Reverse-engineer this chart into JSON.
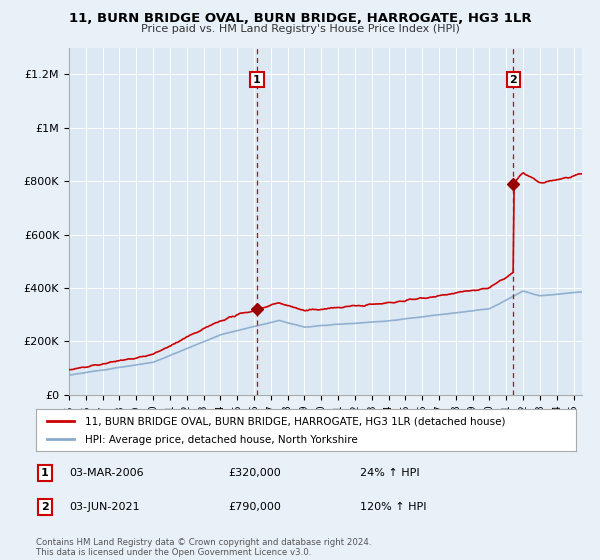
{
  "title": "11, BURN BRIDGE OVAL, BURN BRIDGE, HARROGATE, HG3 1LR",
  "subtitle": "Price paid vs. HM Land Registry's House Price Index (HPI)",
  "background_color": "#e8f0f8",
  "plot_bg_color": "#dce9f5",
  "ylim": [
    0,
    1300000
  ],
  "yticks": [
    0,
    200000,
    400000,
    600000,
    800000,
    1000000,
    1200000
  ],
  "ytick_labels": [
    "£0",
    "£200K",
    "£400K",
    "£600K",
    "£800K",
    "£1M",
    "£1.2M"
  ],
  "red_line_label": "11, BURN BRIDGE OVAL, BURN BRIDGE, HARROGATE, HG3 1LR (detached house)",
  "blue_line_label": "HPI: Average price, detached house, North Yorkshire",
  "sale1_year": 2006.17,
  "sale1_price": 320000,
  "sale1_label": "1",
  "sale1_date": "03-MAR-2006",
  "sale1_hpi": "24% ↑ HPI",
  "sale2_year": 2021.42,
  "sale2_price": 790000,
  "sale2_label": "2",
  "sale2_date": "03-JUN-2021",
  "sale2_hpi": "120% ↑ HPI",
  "footnote": "Contains HM Land Registry data © Crown copyright and database right 2024.\nThis data is licensed under the Open Government Licence v3.0.",
  "red_color": "#cc0000",
  "blue_color": "#88aacc",
  "vline_color": "#cc0000",
  "grid_color": "#ffffff",
  "marker_color": "#990000"
}
